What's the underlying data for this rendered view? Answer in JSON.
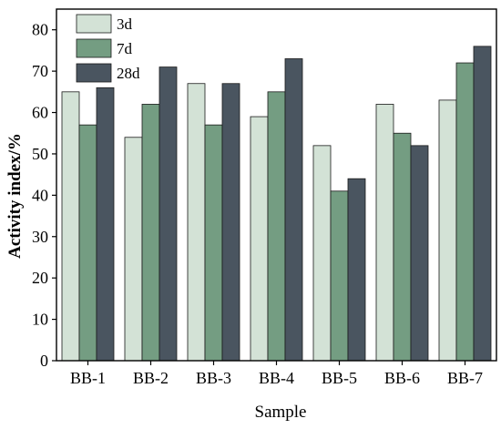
{
  "chart_data": {
    "type": "bar",
    "title": "",
    "xlabel": "Sample",
    "ylabel": "Activity index/%",
    "categories": [
      "BB-1",
      "BB-2",
      "BB-3",
      "BB-4",
      "BB-5",
      "BB-6",
      "BB-7"
    ],
    "series": [
      {
        "name": "3d",
        "color": "#d3e2d6",
        "values": [
          65,
          54,
          67,
          59,
          52,
          62,
          63
        ]
      },
      {
        "name": "7d",
        "color": "#749d82",
        "values": [
          57,
          62,
          57,
          65,
          41,
          55,
          72
        ]
      },
      {
        "name": "28d",
        "color": "#4a5560",
        "values": [
          66,
          71,
          67,
          73,
          44,
          52,
          76
        ]
      }
    ],
    "ylim": [
      0,
      85
    ],
    "yticks": [
      0,
      10,
      20,
      30,
      40,
      50,
      60,
      70,
      80
    ],
    "grid": false,
    "legend_position": "top-left"
  }
}
